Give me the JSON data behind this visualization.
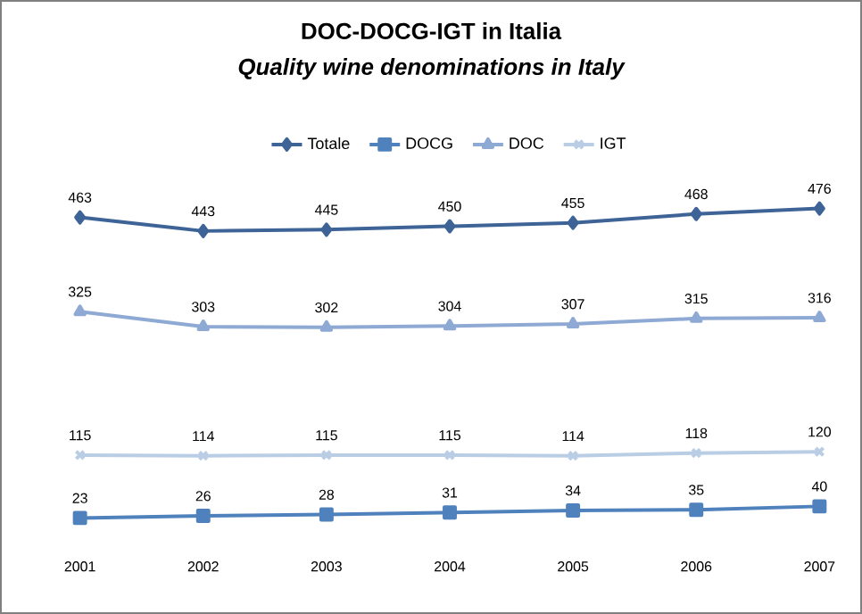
{
  "chart_data": {
    "type": "line",
    "title": "DOC-DOCG-IGT in Italia",
    "subtitle": "Quality wine denominations in Italy",
    "categories": [
      "2001",
      "2002",
      "2003",
      "2004",
      "2005",
      "2006",
      "2007"
    ],
    "series": [
      {
        "name": "Totale",
        "color": "#3e6497",
        "marker": "diamond",
        "values": [
          463,
          443,
          445,
          450,
          455,
          468,
          476
        ]
      },
      {
        "name": "DOCG",
        "color": "#4f81bd",
        "marker": "square",
        "values": [
          23,
          26,
          28,
          31,
          34,
          35,
          40
        ]
      },
      {
        "name": "DOC",
        "color": "#8eaad4",
        "marker": "triangle",
        "values": [
          325,
          303,
          302,
          304,
          307,
          315,
          316
        ]
      },
      {
        "name": "IGT",
        "color": "#b9cde5",
        "marker": "cross",
        "values": [
          115,
          114,
          115,
          115,
          114,
          118,
          120
        ]
      }
    ],
    "data_labels": true,
    "legend": "top",
    "tick_labels": "x",
    "line_style": "solid"
  }
}
